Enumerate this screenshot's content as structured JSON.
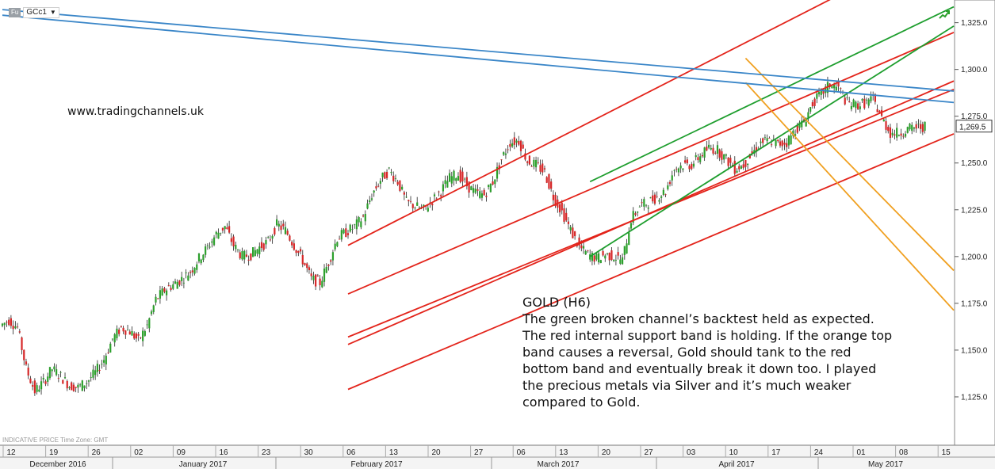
{
  "header": {
    "market_tag": "Fu",
    "symbol": "GCc1"
  },
  "watermark": "www.tradingchannels.uk",
  "commentary": {
    "title": "GOLD (H6)",
    "body": "The green broken channel’s backtest held as expected. The red internal support band is holding. If the orange top band causes a reversal, Gold should tank to the red bottom band and eventually break it down too. I played the precious metals via Silver and it’s much weaker compared to Gold."
  },
  "footer_note": "INDICATIVE PRICE   Time Zone: GMT",
  "colors": {
    "up_candle": "#2ca02c",
    "down_candle": "#d62728",
    "red_channel": "#e3241b",
    "green_channel": "#1e9e2e",
    "orange_channel": "#f0a020",
    "blue_channel": "#3a86c8",
    "price_tag_border": "#333333"
  },
  "icons": [
    "trend-up-icon",
    "dropdown-caret-icon"
  ],
  "chart_data": {
    "type": "candlestick",
    "ylim": [
      1100,
      1335
    ],
    "y_ticks": [
      "1,325.0",
      "1,300.0",
      "1,275.0",
      "1,250.0",
      "1,225.0",
      "1,200.0",
      "1,175.0",
      "1,150.0",
      "1,125.0"
    ],
    "y_tick_values": [
      1325,
      1300,
      1275,
      1250,
      1225,
      1200,
      1175,
      1150,
      1125
    ],
    "last_price": "1,269.5",
    "last_price_value": 1269.5,
    "x_day_ticks": [
      "12",
      "19",
      "26",
      "02",
      "09",
      "16",
      "23",
      "30",
      "06",
      "13",
      "20",
      "27",
      "06",
      "13",
      "20",
      "27",
      "03",
      "10",
      "17",
      "24",
      "01",
      "08",
      "15"
    ],
    "x_months": [
      "December 2016",
      "January 2017",
      "February 2017",
      "March 2017",
      "April 2017",
      "May 2017"
    ],
    "price_path": [
      1163,
      1166,
      1162,
      1140,
      1128,
      1133,
      1140,
      1136,
      1131,
      1130,
      1133,
      1138,
      1145,
      1156,
      1162,
      1160,
      1155,
      1163,
      1177,
      1182,
      1185,
      1188,
      1192,
      1199,
      1205,
      1212,
      1216,
      1206,
      1200,
      1201,
      1205,
      1208,
      1217,
      1214,
      1206,
      1198,
      1188,
      1186,
      1197,
      1210,
      1213,
      1216,
      1221,
      1233,
      1241,
      1246,
      1240,
      1229,
      1227,
      1225,
      1230,
      1235,
      1242,
      1244,
      1238,
      1234,
      1233,
      1240,
      1252,
      1261,
      1262,
      1251,
      1249,
      1245,
      1232,
      1224,
      1214,
      1205,
      1201,
      1199,
      1201,
      1200,
      1198,
      1220,
      1227,
      1229,
      1232,
      1235,
      1247,
      1249,
      1249,
      1254,
      1258,
      1257,
      1252,
      1247,
      1249,
      1255,
      1261,
      1262,
      1260,
      1261,
      1268,
      1272,
      1282,
      1287,
      1292,
      1290,
      1282,
      1281,
      1282,
      1284,
      1274,
      1266,
      1266,
      1268,
      1269,
      1269.5
    ],
    "channels": [
      {
        "color": "red",
        "points": [
          [
            40,
            1206
          ],
          [
            81,
            1300
          ]
        ]
      },
      {
        "color": "red",
        "points": [
          [
            40,
            1180
          ],
          [
            108,
            1312
          ]
        ]
      },
      {
        "color": "red",
        "points": [
          [
            40,
            1157
          ],
          [
            108,
            1282
          ]
        ]
      },
      {
        "color": "red",
        "points": [
          [
            40,
            1153
          ],
          [
            108,
            1286
          ]
        ]
      },
      {
        "color": "red",
        "points": [
          [
            40,
            1129
          ],
          [
            108,
            1258
          ]
        ]
      },
      {
        "color": "green",
        "points": [
          [
            68,
            1240
          ],
          [
            108,
            1325
          ]
        ]
      },
      {
        "color": "green",
        "points": [
          [
            68,
            1200
          ],
          [
            108,
            1312
          ]
        ]
      },
      {
        "color": "orange",
        "points": [
          [
            86,
            1306
          ],
          [
            108,
            1210
          ]
        ]
      },
      {
        "color": "orange",
        "points": [
          [
            86,
            1293
          ],
          [
            108,
            1190
          ]
        ]
      },
      {
        "color": "blue",
        "points": [
          [
            0,
            1332
          ],
          [
            108,
            1290
          ]
        ]
      },
      {
        "color": "blue",
        "points": [
          [
            0,
            1329
          ],
          [
            108,
            1284
          ]
        ]
      }
    ]
  }
}
